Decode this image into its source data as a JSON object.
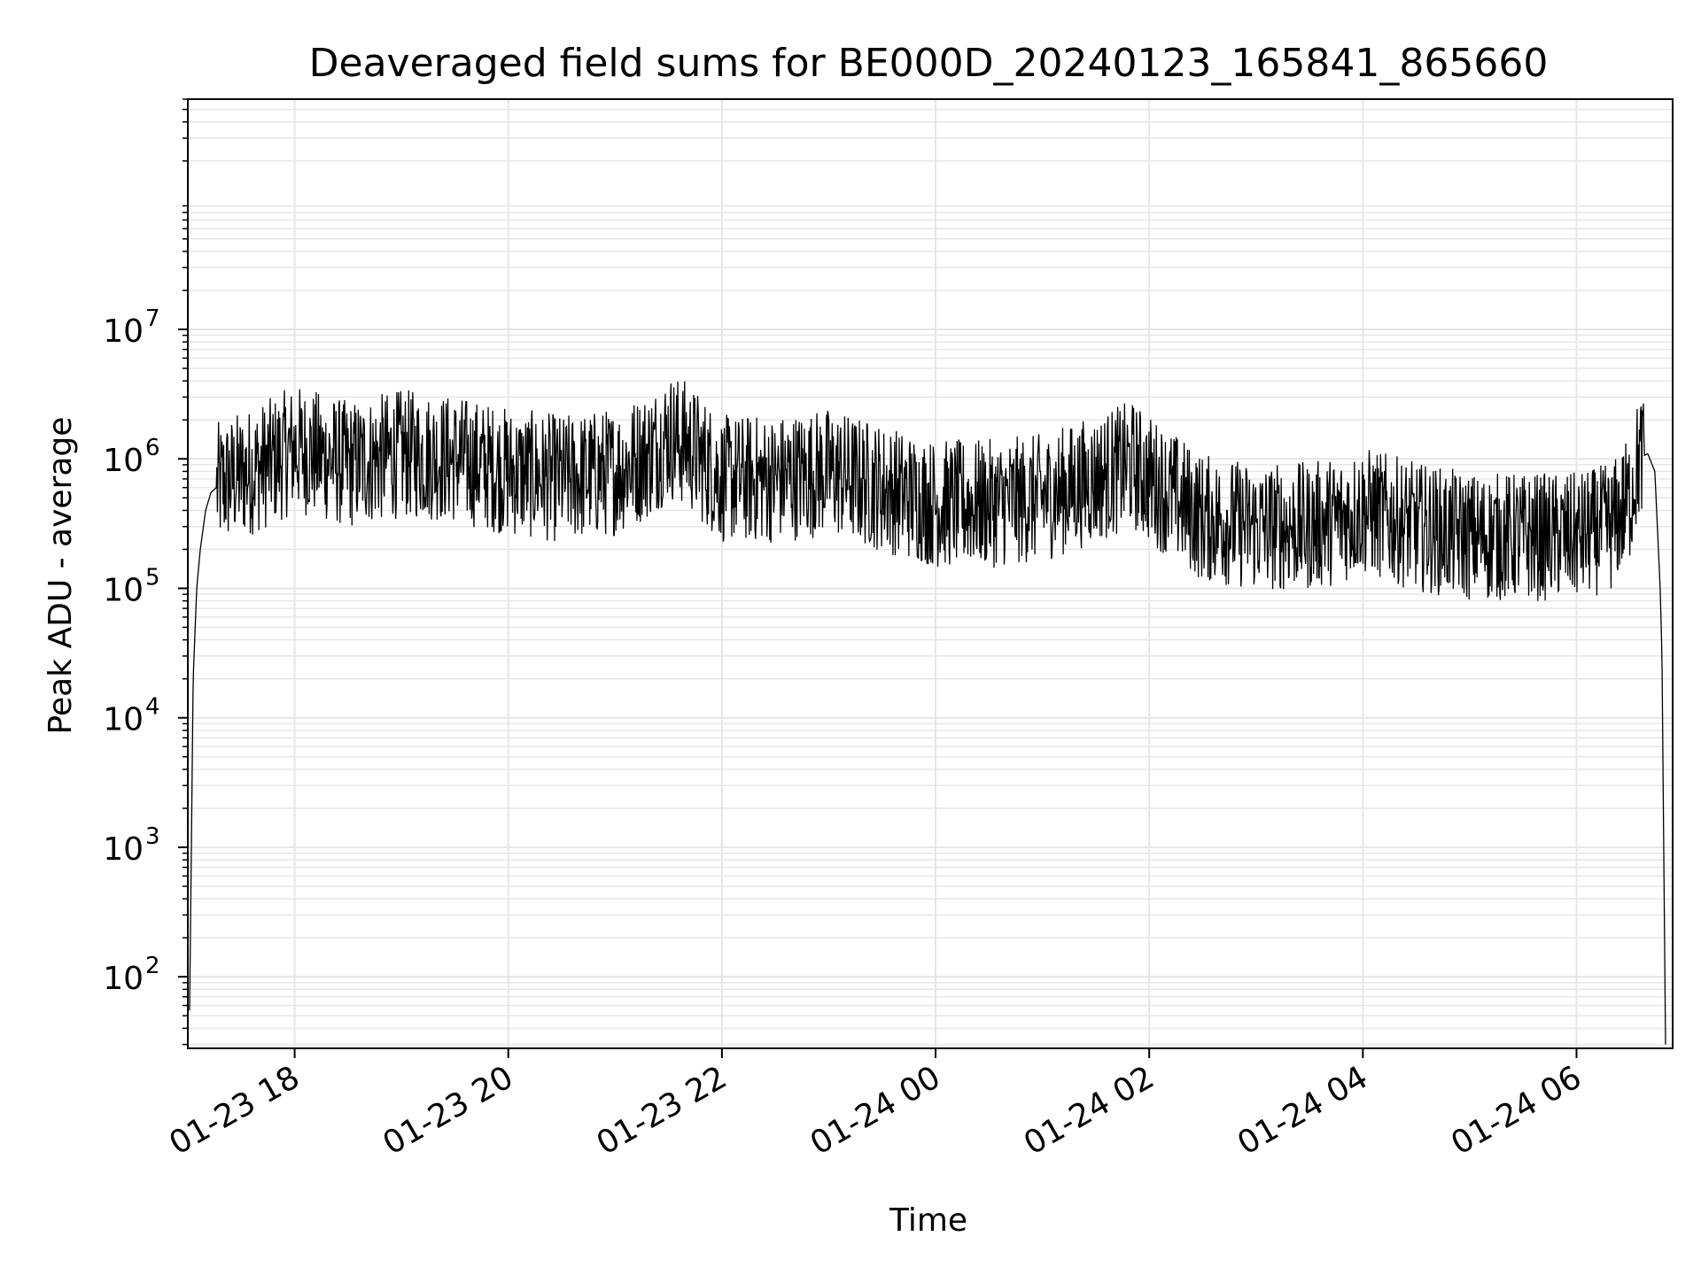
{
  "chart_data": {
    "type": "line",
    "title": "Deaveraged field sums for BE000D_20240123_165841_865660",
    "xlabel": "Time",
    "ylabel": "Peak ADU - average",
    "yscale": "log",
    "ylim": [
      28,
      600000000
    ],
    "xlim": [
      "2024-01-23 17:00",
      "2024-01-24 06:54"
    ],
    "x_ticks": [
      "01-23 18",
      "01-23 20",
      "01-23 22",
      "01-24 00",
      "01-24 02",
      "01-24 04",
      "01-24 06"
    ],
    "y_ticks": [
      {
        "base": "10",
        "exp": "2",
        "value": 100
      },
      {
        "base": "10",
        "exp": "3",
        "value": 1000
      },
      {
        "base": "10",
        "exp": "4",
        "value": 10000
      },
      {
        "base": "10",
        "exp": "5",
        "value": 100000
      },
      {
        "base": "10",
        "exp": "6",
        "value": 1000000
      },
      {
        "base": "10",
        "exp": "7",
        "value": 10000000
      }
    ],
    "grid": true,
    "line_color": "#000000",
    "grid_color": "#e6e6e6",
    "series": [
      {
        "x": [
          "2024-01-23 17:01",
          "2024-01-23 17:02",
          "2024-01-23 17:03",
          "2024-01-23 17:05",
          "2024-01-23 17:07",
          "2024-01-23 17:10",
          "2024-01-23 17:13",
          "2024-01-23 17:16",
          "2024-01-23 17:20",
          "2024-01-23 17:25",
          "2024-01-23 17:30",
          "2024-01-23 17:40",
          "2024-01-23 17:50",
          "2024-01-23 18:00",
          "2024-01-23 18:10",
          "2024-01-23 18:30",
          "2024-01-23 19:00",
          "2024-01-23 19:30",
          "2024-01-23 20:00",
          "2024-01-23 20:30",
          "2024-01-23 21:00",
          "2024-01-23 21:20",
          "2024-01-23 21:30",
          "2024-01-23 21:40",
          "2024-01-23 22:00",
          "2024-01-23 22:30",
          "2024-01-23 23:00",
          "2024-01-23 23:30",
          "2024-01-24 00:00",
          "2024-01-24 00:30",
          "2024-01-24 01:00",
          "2024-01-24 01:30",
          "2024-01-24 01:50",
          "2024-01-24 02:00",
          "2024-01-24 02:15",
          "2024-01-24 02:30",
          "2024-01-24 03:00",
          "2024-01-24 03:30",
          "2024-01-24 03:50",
          "2024-01-24 04:00",
          "2024-01-24 04:30",
          "2024-01-24 05:00",
          "2024-01-24 05:30",
          "2024-01-24 06:00",
          "2024-01-24 06:20",
          "2024-01-24 06:30",
          "2024-01-24 06:35",
          "2024-01-24 06:40",
          "2024-01-24 06:44",
          "2024-01-24 06:47",
          "2024-01-24 06:48",
          "2024-01-24 06:50"
        ],
        "y": [
          55,
          1000,
          20000,
          100000,
          200000,
          400000,
          550000,
          600000,
          650000,
          700000,
          750000,
          850000,
          1000000,
          1200000,
          1100000,
          900000,
          1100000,
          1000000,
          800000,
          700000,
          800000,
          1100000,
          1500000,
          1300000,
          700000,
          700000,
          800000,
          600000,
          450000,
          450000,
          500000,
          700000,
          900000,
          700000,
          500000,
          350000,
          300000,
          300000,
          350000,
          400000,
          300000,
          250000,
          250000,
          250000,
          300000,
          500000,
          1000000,
          1100000,
          800000,
          100000,
          30000,
          30
        ]
      }
    ]
  }
}
